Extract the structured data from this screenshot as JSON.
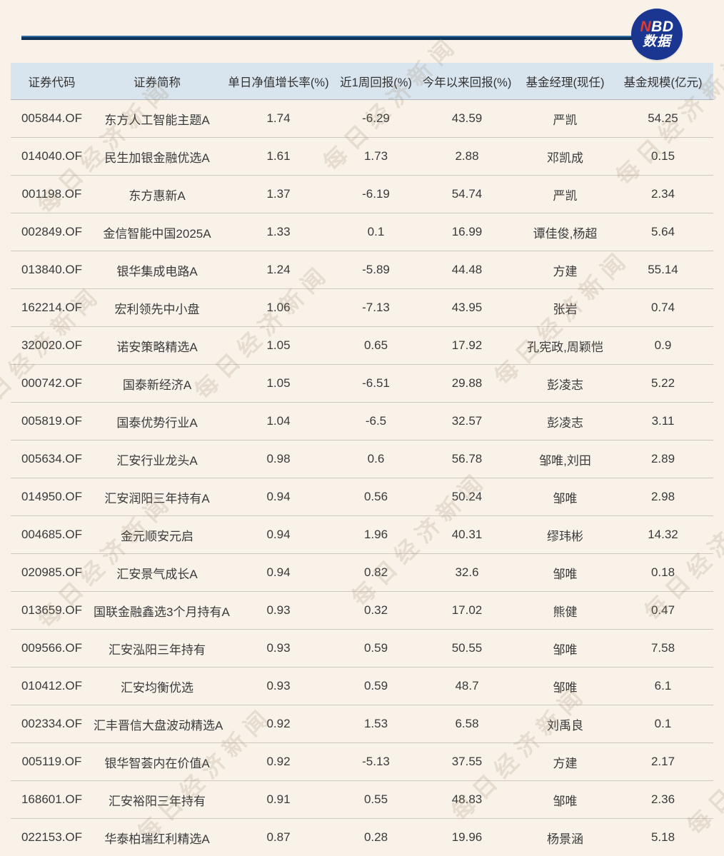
{
  "page": {
    "background": "#f8f2e9"
  },
  "header": {
    "rule_color": "#0f3156",
    "logo": {
      "text_n": "N",
      "text_bd": "BD",
      "text_line2": "数据",
      "circle_color": "#1a3690",
      "n_color": "#e23b2e"
    }
  },
  "watermark": {
    "text": "每日经济新闻"
  },
  "colors": {
    "table_header_bg": "#d8e4ee",
    "row_separator": "#cdc8c0",
    "text": "#3a3a3a"
  },
  "chart_data": {
    "type": "table",
    "columns": [
      "证券代码",
      "证券简称",
      "单日净值增长率(%)",
      "近1周回报(%)",
      "今年以来回报(%)",
      "基金经理(现任)",
      "基金规模(亿元)"
    ],
    "rows": [
      [
        "005844.OF",
        "东方人工智能主题A",
        "1.74",
        "-6.29",
        "43.59",
        "严凯",
        "54.25"
      ],
      [
        "014040.OF",
        "民生加银金融优选A",
        "1.61",
        "1.73",
        "2.88",
        "邓凯成",
        "0.15"
      ],
      [
        "001198.OF",
        "东方惠新A",
        "1.37",
        "-6.19",
        "54.74",
        "严凯",
        "2.34"
      ],
      [
        "002849.OF",
        "金信智能中国2025A",
        "1.33",
        "0.1",
        "16.99",
        "谭佳俊,杨超",
        "5.64"
      ],
      [
        "013840.OF",
        "银华集成电路A",
        "1.24",
        "-5.89",
        "44.48",
        "方建",
        "55.14"
      ],
      [
        "162214.OF",
        "宏利领先中小盘",
        "1.06",
        "-7.13",
        "43.95",
        "张岩",
        "0.74"
      ],
      [
        "320020.OF",
        "诺安策略精选A",
        "1.05",
        "0.65",
        "17.92",
        "孔宪政,周颖恺",
        "0.9"
      ],
      [
        "000742.OF",
        "国泰新经济A",
        "1.05",
        "-6.51",
        "29.88",
        "彭凌志",
        "5.22"
      ],
      [
        "005819.OF",
        "国泰优势行业A",
        "1.04",
        "-6.5",
        "32.57",
        "彭凌志",
        "3.11"
      ],
      [
        "005634.OF",
        "汇安行业龙头A",
        "0.98",
        "0.6",
        "56.78",
        "邹唯,刘田",
        "2.89"
      ],
      [
        "014950.OF",
        "汇安润阳三年持有A",
        "0.94",
        "0.56",
        "50.24",
        "邹唯",
        "2.98"
      ],
      [
        "004685.OF",
        "金元顺安元启",
        "0.94",
        "1.96",
        "40.31",
        "缪玮彬",
        "14.32"
      ],
      [
        "020985.OF",
        "汇安景气成长A",
        "0.94",
        "0.82",
        "32.6",
        "邹唯",
        "0.18"
      ],
      [
        "013659.OF",
        "国联金融鑫选3个月持有A",
        "0.93",
        "0.32",
        "17.02",
        "熊健",
        "0.47"
      ],
      [
        "009566.OF",
        "汇安泓阳三年持有",
        "0.93",
        "0.59",
        "50.55",
        "邹唯",
        "7.58"
      ],
      [
        "010412.OF",
        "汇安均衡优选",
        "0.93",
        "0.59",
        "48.7",
        "邹唯",
        "6.1"
      ],
      [
        "002334.OF",
        "汇丰晋信大盘波动精选A",
        "0.92",
        "1.53",
        "6.58",
        "刘禹良",
        "0.1"
      ],
      [
        "005119.OF",
        "银华智荟内在价值A",
        "0.92",
        "-5.13",
        "37.55",
        "方建",
        "2.17"
      ],
      [
        "168601.OF",
        "汇安裕阳三年持有",
        "0.91",
        "0.55",
        "48.83",
        "邹唯",
        "2.36"
      ],
      [
        "022153.OF",
        "华泰柏瑞红利精选A",
        "0.87",
        "0.28",
        "19.96",
        "杨景涵",
        "5.18"
      ]
    ]
  }
}
